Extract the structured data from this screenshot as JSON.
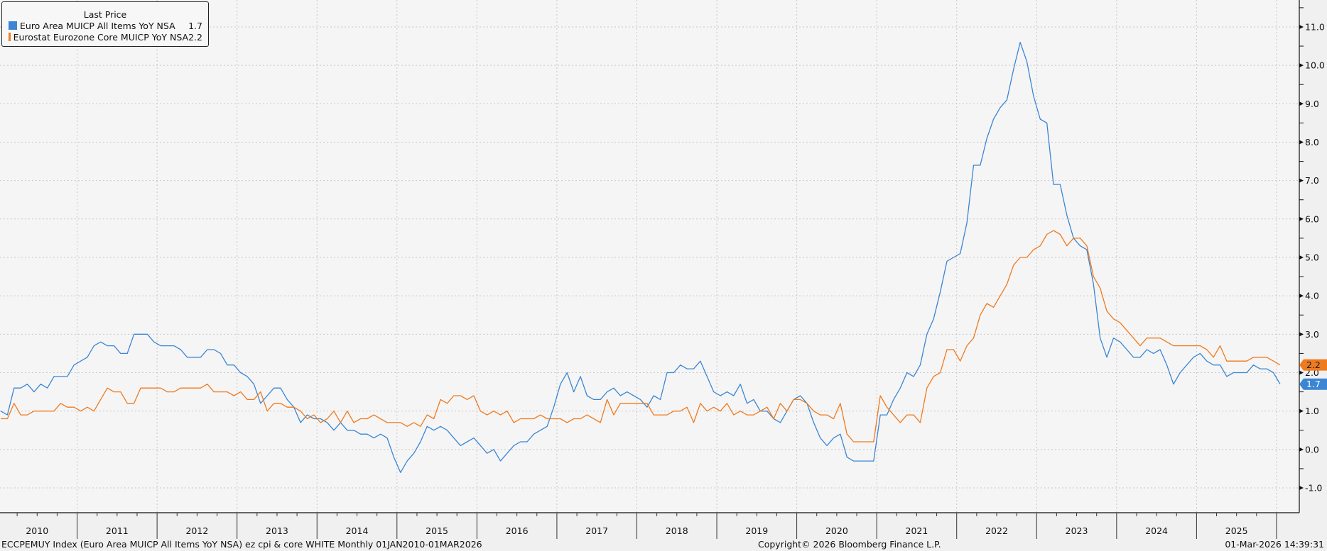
{
  "legend": {
    "title": "Last Price",
    "items": [
      {
        "label": "Euro Area MUICP All Items YoY NSA",
        "value": "1.7",
        "color": "#3a86d4"
      },
      {
        "label": "Eurostat Eurozone Core MUICP YoY NSA",
        "value": "2.2",
        "color": "#f07a1e"
      }
    ]
  },
  "footer": {
    "left": "ECCPEMUY Index (Euro Area MUICP All Items YoY NSA) ez cpi & core WHITE Monthly 01JAN2010-01MAR2026",
    "center": "Copyright© 2026 Bloomberg Finance L.P.",
    "right": "01-Mar-2026 14:39:31"
  },
  "chart_data": {
    "type": "line",
    "frequency": "monthly",
    "x_start": "2010-01",
    "x_end": "2026-01",
    "x_tick_labels": [
      "2010",
      "2011",
      "2012",
      "2013",
      "2014",
      "2015",
      "2016",
      "2017",
      "2018",
      "2019",
      "2020",
      "2021",
      "2022",
      "2023",
      "2024",
      "2025"
    ],
    "y_axis_side": "right",
    "ylim": [
      -1.5,
      11.5
    ],
    "y_ticks": [
      "-1.0",
      "0.0",
      "1.0",
      "2.0",
      "3.0",
      "4.0",
      "5.0",
      "6.0",
      "7.0",
      "8.0",
      "9.0",
      "10.0",
      "11.0"
    ],
    "grid": true,
    "legend_placement": "top-left",
    "series": [
      {
        "name": "Euro Area MUICP All Items YoY NSA",
        "color": "#3a86d4",
        "last_value_label": "1.7",
        "values": [
          1.0,
          0.9,
          1.6,
          1.6,
          1.7,
          1.5,
          1.7,
          1.6,
          1.9,
          1.9,
          1.9,
          2.2,
          2.3,
          2.4,
          2.7,
          2.8,
          2.7,
          2.7,
          2.5,
          2.5,
          3.0,
          3.0,
          3.0,
          2.8,
          2.7,
          2.7,
          2.7,
          2.6,
          2.4,
          2.4,
          2.4,
          2.6,
          2.6,
          2.5,
          2.2,
          2.2,
          2.0,
          1.9,
          1.7,
          1.2,
          1.4,
          1.6,
          1.6,
          1.3,
          1.1,
          0.7,
          0.9,
          0.8,
          0.8,
          0.7,
          0.5,
          0.7,
          0.5,
          0.5,
          0.4,
          0.4,
          0.3,
          0.4,
          0.3,
          -0.2,
          -0.6,
          -0.3,
          -0.1,
          0.2,
          0.6,
          0.5,
          0.6,
          0.5,
          0.3,
          0.1,
          0.2,
          0.3,
          0.1,
          -0.1,
          0.0,
          -0.3,
          -0.1,
          0.1,
          0.2,
          0.2,
          0.4,
          0.5,
          0.6,
          1.1,
          1.7,
          2.0,
          1.5,
          1.9,
          1.4,
          1.3,
          1.3,
          1.5,
          1.6,
          1.4,
          1.5,
          1.4,
          1.3,
          1.1,
          1.4,
          1.3,
          2.0,
          2.0,
          2.2,
          2.1,
          2.1,
          2.3,
          1.9,
          1.5,
          1.4,
          1.5,
          1.4,
          1.7,
          1.2,
          1.3,
          1.0,
          1.0,
          0.8,
          0.7,
          1.0,
          1.3,
          1.4,
          1.2,
          0.7,
          0.3,
          0.1,
          0.3,
          0.4,
          -0.2,
          -0.3,
          -0.3,
          -0.3,
          -0.3,
          0.9,
          0.9,
          1.3,
          1.6,
          2.0,
          1.9,
          2.2,
          3.0,
          3.4,
          4.1,
          4.9,
          5.0,
          5.1,
          5.9,
          7.4,
          7.4,
          8.1,
          8.6,
          8.9,
          9.1,
          9.9,
          10.6,
          10.1,
          9.2,
          8.6,
          8.5,
          6.9,
          6.9,
          6.1,
          5.5,
          5.3,
          5.2,
          4.3,
          2.9,
          2.4,
          2.9,
          2.8,
          2.6,
          2.4,
          2.4,
          2.6,
          2.5,
          2.6,
          2.2,
          1.7,
          2.0,
          2.2,
          2.4,
          2.5,
          2.3,
          2.2,
          2.2,
          1.9,
          2.0,
          2.0,
          2.0,
          2.2,
          2.1,
          2.1,
          2.0,
          1.7
        ]
      },
      {
        "name": "Eurostat Eurozone Core MUICP YoY NSA",
        "color": "#f07a1e",
        "last_value_label": "2.2",
        "values": [
          0.8,
          0.8,
          1.2,
          0.9,
          0.9,
          1.0,
          1.0,
          1.0,
          1.0,
          1.2,
          1.1,
          1.1,
          1.0,
          1.1,
          1.0,
          1.3,
          1.6,
          1.5,
          1.5,
          1.2,
          1.2,
          1.6,
          1.6,
          1.6,
          1.6,
          1.5,
          1.5,
          1.6,
          1.6,
          1.6,
          1.6,
          1.7,
          1.5,
          1.5,
          1.5,
          1.4,
          1.5,
          1.3,
          1.3,
          1.5,
          1.0,
          1.2,
          1.2,
          1.1,
          1.1,
          1.0,
          0.8,
          0.9,
          0.7,
          0.8,
          1.0,
          0.7,
          1.0,
          0.7,
          0.8,
          0.8,
          0.9,
          0.8,
          0.7,
          0.7,
          0.7,
          0.6,
          0.7,
          0.6,
          0.9,
          0.8,
          1.3,
          1.2,
          1.4,
          1.4,
          1.3,
          1.4,
          1.0,
          0.9,
          1.0,
          0.9,
          1.0,
          0.7,
          0.8,
          0.8,
          0.8,
          0.9,
          0.8,
          0.8,
          0.8,
          0.7,
          0.8,
          0.8,
          0.9,
          0.8,
          0.7,
          1.3,
          0.9,
          1.2,
          1.2,
          1.2,
          1.2,
          1.2,
          0.9,
          0.9,
          0.9,
          1.0,
          1.0,
          1.1,
          0.7,
          1.2,
          1.0,
          1.1,
          1.0,
          1.2,
          0.9,
          1.0,
          0.9,
          0.9,
          1.0,
          1.1,
          0.8,
          1.2,
          1.0,
          1.3,
          1.3,
          1.2,
          1.0,
          0.9,
          0.9,
          0.8,
          1.2,
          0.4,
          0.2,
          0.2,
          0.2,
          0.2,
          1.4,
          1.1,
          0.9,
          0.7,
          0.9,
          0.9,
          0.7,
          1.6,
          1.9,
          2.0,
          2.6,
          2.6,
          2.3,
          2.7,
          2.9,
          3.5,
          3.8,
          3.7,
          4.0,
          4.3,
          4.8,
          5.0,
          5.0,
          5.2,
          5.3,
          5.6,
          5.7,
          5.6,
          5.3,
          5.5,
          5.5,
          5.3,
          4.5,
          4.2,
          3.6,
          3.4,
          3.3,
          3.1,
          2.9,
          2.7,
          2.9,
          2.9,
          2.9,
          2.8,
          2.7,
          2.7,
          2.7,
          2.7,
          2.7,
          2.6,
          2.4,
          2.7,
          2.3,
          2.3,
          2.3,
          2.3,
          2.4,
          2.4,
          2.4,
          2.3,
          2.2
        ]
      }
    ]
  }
}
